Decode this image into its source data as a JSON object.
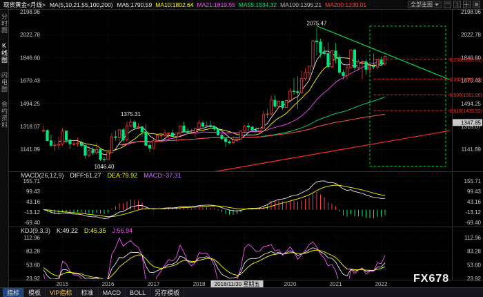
{
  "colors": {
    "background": "#000000",
    "grid": "#2f2f2f",
    "axis_text": "#c8c8c8",
    "candle_up": "#ff4242",
    "candle_down": "#00e57d",
    "crosshair_box_bg": "#c8c8c8",
    "crosshair_box_text": "#000000",
    "annotation_text": "#e8e8e8",
    "year_text": "#b8b8b8"
  },
  "top_bar": {
    "title": "现货黄金<月线>",
    "ma_label": "MA(5,10,21,55,100,200)",
    "ma_values": [
      {
        "text": "MA5:1790.59",
        "color": "#e8e8e8"
      },
      {
        "text": "MA10:1802.64",
        "color": "#ffff00"
      },
      {
        "text": "MA21:1819.55",
        "color": "#ff4dff"
      },
      {
        "text": "MA55:1534.32",
        "color": "#00e57d"
      },
      {
        "text": "MA100:1395.21",
        "color": "#bdbdbd"
      },
      {
        "text": "MA200:1239.01",
        "color": "#ff4040"
      }
    ],
    "view_selector": "全部主图"
  },
  "sidebar": {
    "items": [
      {
        "label": "分时图",
        "selected": false
      },
      {
        "label": "K线图",
        "selected": true
      },
      {
        "label": "闪电图",
        "selected": false
      },
      {
        "label": "合约资料",
        "selected": false
      }
    ]
  },
  "indicators": {
    "macd": {
      "parts": [
        {
          "text": "MACD(26,12,9)",
          "color": "#d8d8d8"
        },
        {
          "text": "DIFF:61.27",
          "color": "#e8e8e8"
        },
        {
          "text": "DEA:79.92",
          "color": "#ffff00"
        },
        {
          "text": "MACD:-37.31",
          "color": "#c77dff"
        }
      ]
    },
    "kdj": {
      "parts": [
        {
          "text": "KDJ(9,3,3)",
          "color": "#d8d8d8"
        },
        {
          "text": "K:49.22",
          "color": "#e8e8e8"
        },
        {
          "text": "D:45.35",
          "color": "#ffff00"
        },
        {
          "text": "J:56.94",
          "color": "#ff4dff"
        }
      ]
    }
  },
  "bottom_bar": {
    "period": "月线",
    "tabs": [
      {
        "label": "指标",
        "color": "#e8e8e8"
      },
      {
        "label": "模板",
        "color": "#d8d8d8"
      },
      {
        "label": "VIP指标",
        "color": "#ffd24d"
      },
      {
        "label": "标准",
        "color": "#d8d8d8"
      },
      {
        "label": "MACD",
        "color": "#d8d8d8"
      },
      {
        "label": "BOLL",
        "color": "#d8d8d8"
      },
      {
        "label": "另存模板",
        "color": "#d8d8d8"
      }
    ]
  },
  "watermark": "FX678",
  "chart_data": {
    "type": "candlestick",
    "symbol": "现货黄金",
    "period": "月线",
    "start_month": "2014-08",
    "main_axis": {
      "labels": [
        2198.96,
        2022.78,
        1846.6,
        1670.43,
        1494.25,
        1318.07,
        1141.89
      ]
    },
    "x_axis": {
      "year_labels": [
        "2015",
        "2016",
        "2017",
        "2018",
        "2020",
        "2021",
        "2022"
      ],
      "crosshair_date": "2018/11/30 星期五"
    },
    "crosshair_price": "1347.85",
    "ma_periods": [
      5,
      10,
      21,
      55,
      100,
      200
    ],
    "ma_colors": [
      "#e8e8e8",
      "#ffff00",
      "#ff4dff",
      "#00e57d",
      "#a0a0a0",
      "#ff4040"
    ],
    "macd": {
      "params": [
        26,
        12,
        9
      ],
      "axis_labels": [
        155.71,
        99.43,
        43.16,
        -13.12,
        -69.4
      ]
    },
    "kdj": {
      "params": [
        9,
        3,
        3
      ],
      "axis_labels": [
        112.96,
        83.28,
        53.6,
        23.92
      ]
    },
    "annotations": {
      "high_label": {
        "t": "2020-08",
        "price": 2075.47,
        "text": "2075.47"
      },
      "mid_label": {
        "t": "2016-07",
        "price": 1375.31,
        "text": "1375.31"
      },
      "low_label": {
        "t": "2015-12",
        "price": 1046.4,
        "text": "1046.40"
      },
      "down_trendline": {
        "t1": "2020-08",
        "p1": 2090,
        "t2": "2023-07",
        "p2": 1678,
        "color": "#00d44a"
      },
      "up_trendline": {
        "t1": "2018-02",
        "p1": 955,
        "t2": "2023-07",
        "p2": 1285,
        "color": "#ff2b2b"
      },
      "dashed_box": {
        "t1": "2021-10",
        "p1": 2088,
        "t2": "2023-06",
        "p2": 1012,
        "color": "#00e64d"
      },
      "fib": {
        "color": "#ff3333",
        "span": {
          "t1": "2021-11",
          "t2": "2023-07"
        },
        "levels": [
          {
            "label": "0.236(1833.02)",
            "price": 1833.02
          },
          {
            "label": "0.382(1682.62)",
            "price": 1682.62
          },
          {
            "label": "0.500(1561.06)",
            "price": 1561.06
          },
          {
            "label": "0.618(1439.52)",
            "price": 1439.52
          }
        ]
      }
    },
    "candles": [
      [
        "2014-08",
        1282,
        1322,
        1273,
        1287
      ],
      [
        "2014-09",
        1287,
        1296,
        1206,
        1208
      ],
      [
        "2014-10",
        1208,
        1255,
        1160,
        1173
      ],
      [
        "2014-11",
        1173,
        1208,
        1131,
        1175
      ],
      [
        "2014-12",
        1175,
        1239,
        1140,
        1184
      ],
      [
        "2015-01",
        1184,
        1307,
        1168,
        1283
      ],
      [
        "2015-02",
        1283,
        1285,
        1190,
        1213
      ],
      [
        "2015-03",
        1213,
        1223,
        1141,
        1184
      ],
      [
        "2015-04",
        1184,
        1215,
        1170,
        1184
      ],
      [
        "2015-05",
        1184,
        1232,
        1162,
        1190
      ],
      [
        "2015-06",
        1190,
        1206,
        1157,
        1172
      ],
      [
        "2015-07",
        1172,
        1175,
        1071,
        1095
      ],
      [
        "2015-08",
        1095,
        1170,
        1080,
        1134
      ],
      [
        "2015-09",
        1134,
        1156,
        1098,
        1115
      ],
      [
        "2015-10",
        1115,
        1192,
        1104,
        1142
      ],
      [
        "2015-11",
        1142,
        1146,
        1052,
        1064
      ],
      [
        "2015-12",
        1064,
        1088,
        1046.4,
        1060
      ],
      [
        "2016-01",
        1060,
        1128,
        1060,
        1118
      ],
      [
        "2016-02",
        1118,
        1263,
        1117,
        1238
      ],
      [
        "2016-03",
        1238,
        1285,
        1208,
        1232
      ],
      [
        "2016-04",
        1232,
        1296,
        1208,
        1292
      ],
      [
        "2016-05",
        1292,
        1306,
        1199,
        1215
      ],
      [
        "2016-06",
        1215,
        1358,
        1199,
        1322
      ],
      [
        "2016-07",
        1322,
        1375.31,
        1310,
        1351
      ],
      [
        "2016-08",
        1351,
        1367,
        1302,
        1309
      ],
      [
        "2016-09",
        1309,
        1344,
        1300,
        1315
      ],
      [
        "2016-10",
        1315,
        1322,
        1241,
        1277
      ],
      [
        "2016-11",
        1277,
        1338,
        1171,
        1173
      ],
      [
        "2016-12",
        1173,
        1188,
        1122,
        1152
      ],
      [
        "2017-01",
        1152,
        1220,
        1146,
        1210
      ],
      [
        "2017-02",
        1210,
        1263,
        1205,
        1248
      ],
      [
        "2017-03",
        1248,
        1261,
        1195,
        1249
      ],
      [
        "2017-04",
        1249,
        1295,
        1240,
        1268
      ],
      [
        "2017-05",
        1268,
        1270,
        1214,
        1268
      ],
      [
        "2017-06",
        1268,
        1296,
        1236,
        1241
      ],
      [
        "2017-07",
        1241,
        1270,
        1204,
        1269
      ],
      [
        "2017-08",
        1269,
        1325,
        1251,
        1321
      ],
      [
        "2017-09",
        1321,
        1357,
        1275,
        1280
      ],
      [
        "2017-10",
        1280,
        1306,
        1260,
        1271
      ],
      [
        "2017-11",
        1271,
        1299,
        1263,
        1275
      ],
      [
        "2017-12",
        1275,
        1307,
        1236,
        1303
      ],
      [
        "2018-01",
        1303,
        1366,
        1302,
        1345
      ],
      [
        "2018-02",
        1345,
        1361,
        1302,
        1318
      ],
      [
        "2018-03",
        1318,
        1357,
        1303,
        1325
      ],
      [
        "2018-04",
        1325,
        1365,
        1301,
        1315
      ],
      [
        "2018-05",
        1315,
        1326,
        1282,
        1298
      ],
      [
        "2018-06",
        1298,
        1309,
        1247,
        1252
      ],
      [
        "2018-07",
        1252,
        1266,
        1211,
        1224
      ],
      [
        "2018-08",
        1224,
        1235,
        1160,
        1201
      ],
      [
        "2018-09",
        1201,
        1212,
        1180,
        1192
      ],
      [
        "2018-10",
        1192,
        1243,
        1180,
        1214
      ],
      [
        "2018-11",
        1214,
        1237,
        1196,
        1222
      ],
      [
        "2018-12",
        1222,
        1284,
        1221,
        1282
      ],
      [
        "2019-01",
        1282,
        1326,
        1276,
        1321
      ],
      [
        "2019-02",
        1321,
        1346,
        1280,
        1313
      ],
      [
        "2019-03",
        1313,
        1324,
        1280,
        1292
      ],
      [
        "2019-04",
        1292,
        1310,
        1266,
        1283
      ],
      [
        "2019-05",
        1283,
        1307,
        1266,
        1305
      ],
      [
        "2019-06",
        1305,
        1439,
        1305,
        1409
      ],
      [
        "2019-07",
        1409,
        1453,
        1381,
        1414
      ],
      [
        "2019-08",
        1414,
        1555,
        1400,
        1520
      ],
      [
        "2019-09",
        1520,
        1557,
        1459,
        1472
      ],
      [
        "2019-10",
        1472,
        1519,
        1458,
        1512
      ],
      [
        "2019-11",
        1512,
        1515,
        1445,
        1463
      ],
      [
        "2019-12",
        1463,
        1525,
        1458,
        1517
      ],
      [
        "2020-01",
        1517,
        1611,
        1517,
        1589
      ],
      [
        "2020-02",
        1589,
        1689,
        1563,
        1585
      ],
      [
        "2020-03",
        1585,
        1703,
        1451,
        1577
      ],
      [
        "2020-04",
        1577,
        1747,
        1568,
        1686
      ],
      [
        "2020-05",
        1686,
        1765,
        1670,
        1730
      ],
      [
        "2020-06",
        1730,
        1785,
        1670,
        1780
      ],
      [
        "2020-07",
        1780,
        1981,
        1757,
        1975
      ],
      [
        "2020-08",
        1975,
        2075.47,
        1863,
        1967
      ],
      [
        "2020-09",
        1967,
        1992,
        1848,
        1885
      ],
      [
        "2020-10",
        1885,
        1933,
        1860,
        1878
      ],
      [
        "2020-11",
        1878,
        1965,
        1764,
        1776
      ],
      [
        "2020-12",
        1776,
        1906,
        1764,
        1898
      ],
      [
        "2021-01",
        1898,
        1959,
        1803,
        1847
      ],
      [
        "2021-02",
        1847,
        1871,
        1717,
        1734
      ],
      [
        "2021-03",
        1734,
        1755,
        1677,
        1707
      ],
      [
        "2021-04",
        1707,
        1797,
        1677,
        1769
      ],
      [
        "2021-05",
        1769,
        1912,
        1765,
        1906
      ],
      [
        "2021-06",
        1906,
        1916,
        1750,
        1770
      ],
      [
        "2021-07",
        1770,
        1834,
        1750,
        1814
      ],
      [
        "2021-08",
        1814,
        1831,
        1677,
        1814
      ],
      [
        "2021-09",
        1814,
        1834,
        1721,
        1757
      ],
      [
        "2021-10",
        1757,
        1813,
        1720,
        1783
      ],
      [
        "2021-11",
        1783,
        1877,
        1758,
        1774
      ],
      [
        "2021-12",
        1774,
        1830,
        1753,
        1829
      ],
      [
        "2022-01",
        1829,
        1853,
        1780,
        1797
      ],
      [
        "2022-02",
        1797,
        1864,
        1788,
        1856
      ]
    ]
  }
}
